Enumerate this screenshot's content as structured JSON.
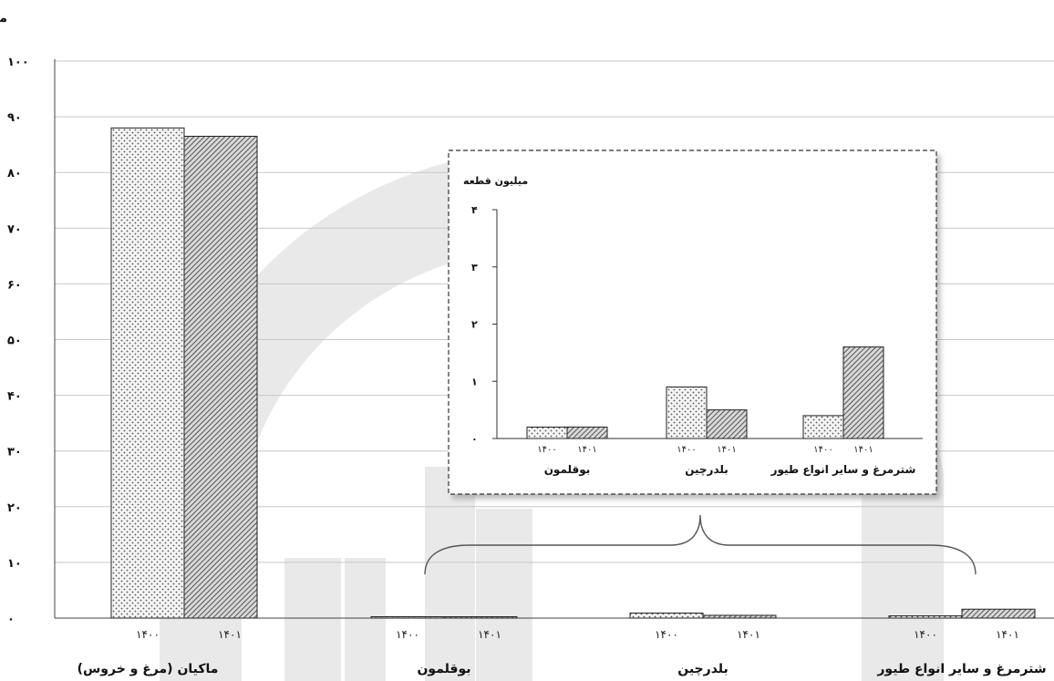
{
  "chart_data": [
    {
      "type": "bar",
      "unit_label": "میلیون قطعه",
      "categories": [
        "ماکیان (مرغ و خروس)",
        "بوقلمون",
        "بلدرچین",
        "شترمرغ و سایر انواع طیور"
      ],
      "series": [
        {
          "name": "۱۴۰۰",
          "values": [
            88,
            0.2,
            0.9,
            0.4
          ],
          "pattern": "dots"
        },
        {
          "name": "۱۴۰۱",
          "values": [
            86.5,
            0.2,
            0.5,
            1.6
          ],
          "pattern": "hatch"
        }
      ],
      "ylim": [
        0,
        100
      ],
      "yticks": [
        "۰",
        "۱۰",
        "۲۰",
        "۳۰",
        "۴۰",
        "۵۰",
        "۶۰",
        "۷۰",
        "۸۰",
        "۹۰",
        "۱۰۰"
      ],
      "grid": true
    },
    {
      "type": "bar",
      "inset": true,
      "unit_label": "میلیون قطعه",
      "categories": [
        "بوقلمون",
        "بلدرچین",
        "شترمرغ و سایر انواع طیور"
      ],
      "series": [
        {
          "name": "۱۴۰۰",
          "values": [
            0.2,
            0.9,
            0.4
          ],
          "pattern": "dots"
        },
        {
          "name": "۱۴۰۱",
          "values": [
            0.2,
            0.5,
            1.6
          ],
          "pattern": "hatch"
        }
      ],
      "ylim": [
        0,
        4
      ],
      "yticks": [
        "۰",
        "۱",
        "۲",
        "۳",
        "۴"
      ],
      "grid": false
    }
  ],
  "colors": {
    "grid": "#c8c8c8",
    "bar_stroke": "#222222",
    "watermark": "#e9e9e9"
  }
}
